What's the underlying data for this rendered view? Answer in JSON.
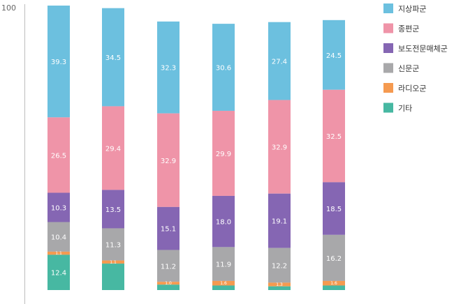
{
  "chart_data": {
    "type": "bar",
    "stacked": true,
    "y_axis_top_label": "100",
    "categories": [
      "",
      "",
      "",
      "",
      "",
      ""
    ],
    "series": [
      {
        "name": "기타",
        "color": "#47b8a2",
        "values": [
          12.4,
          9.3,
          1.9,
          1.6,
          1.3,
          1.6
        ]
      },
      {
        "name": "라디오군",
        "color": "#f59a50",
        "values": [
          1.1,
          1.1,
          1.0,
          1.6,
          1.3,
          1.6
        ]
      },
      {
        "name": "신문군",
        "color": "#a8a8aa",
        "values": [
          10.4,
          11.3,
          11.2,
          11.9,
          12.2,
          16.2
        ]
      },
      {
        "name": "보도전문매체군",
        "color": "#8566b3",
        "values": [
          10.3,
          13.5,
          15.1,
          18.0,
          19.1,
          18.5
        ]
      },
      {
        "name": "종편군",
        "color": "#ef94a8",
        "values": [
          26.5,
          29.4,
          32.9,
          29.9,
          32.9,
          32.5
        ]
      },
      {
        "name": "지상파군",
        "color": "#6cc0df",
        "values": [
          39.3,
          34.5,
          32.3,
          30.6,
          27.4,
          24.5
        ]
      }
    ],
    "segment_labels": [
      [
        "12.4",
        "1.1",
        "10.4",
        "10.3",
        "26.5",
        "39.3"
      ],
      [
        "",
        "1.1",
        "11.3",
        "13.5",
        "29.4",
        "34.5"
      ],
      [
        "",
        "1.0",
        "11.2",
        "15.1",
        "32.9",
        "32.3"
      ],
      [
        "",
        "1.6",
        "11.9",
        "18.0",
        "29.9",
        "30.6"
      ],
      [
        "",
        "1.3",
        "12.2",
        "19.1",
        "32.9",
        "27.4"
      ],
      [
        "",
        "1.6",
        "16.2",
        "18.5",
        "32.5",
        "24.5"
      ]
    ],
    "legend_order": [
      "지상파군",
      "종편군",
      "보도전문매체군",
      "신문군",
      "라디오군",
      "기타"
    ],
    "legend_position": "top-right",
    "grid": false
  }
}
